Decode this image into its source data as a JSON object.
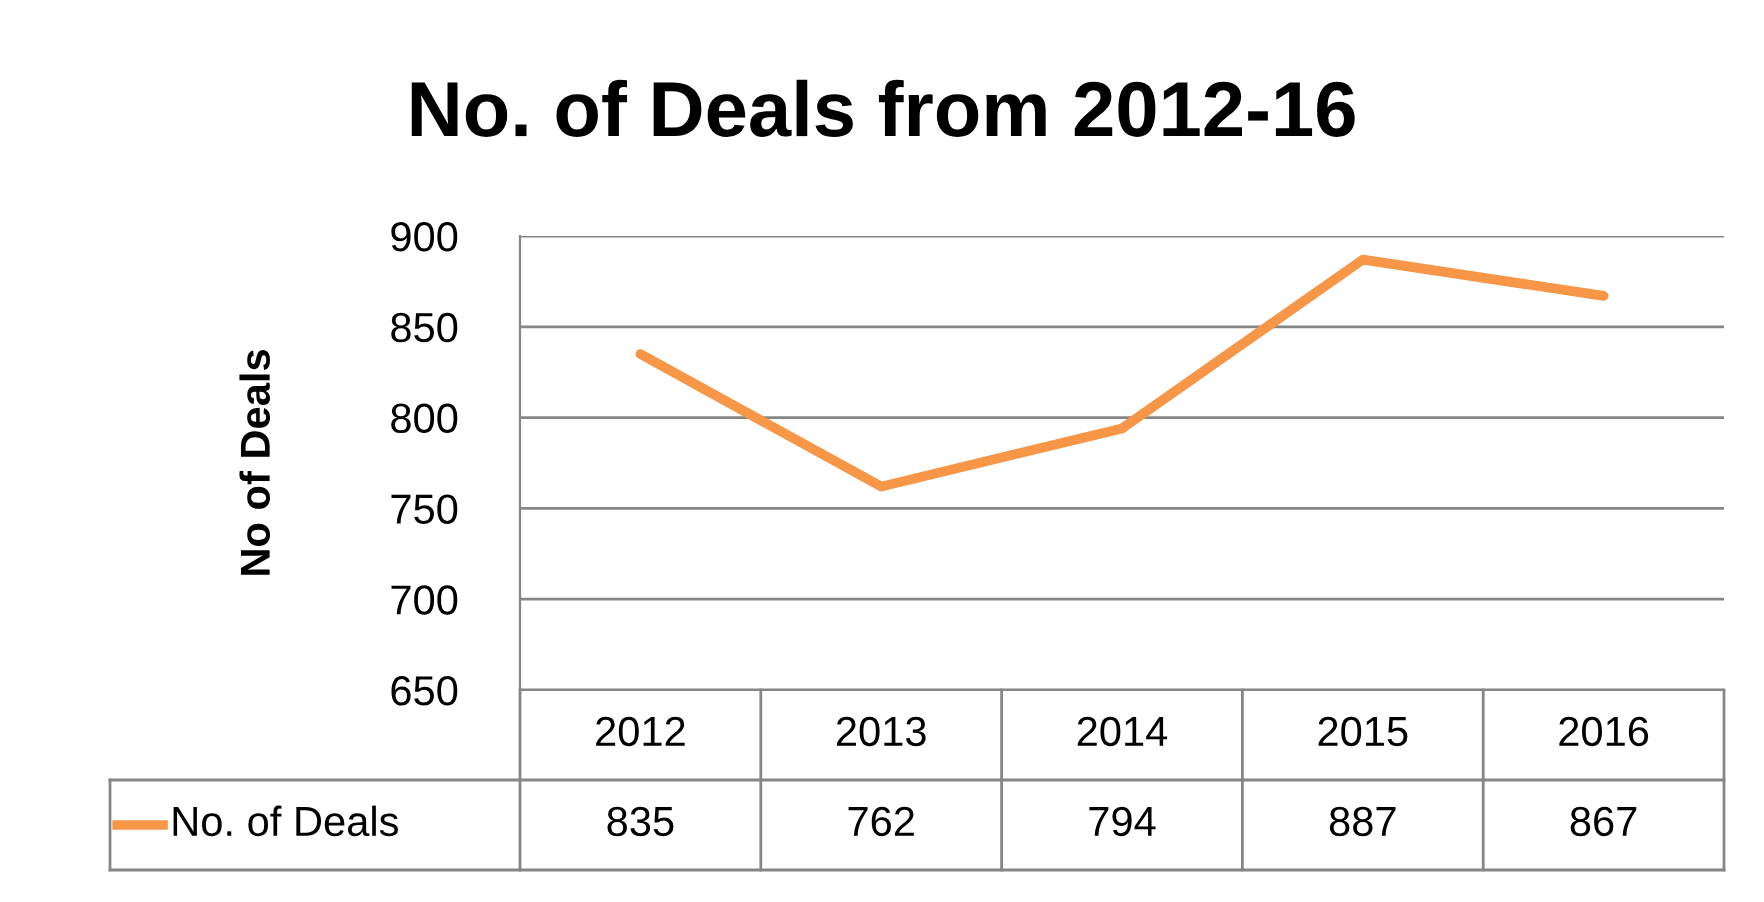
{
  "chart_data": {
    "type": "line",
    "title": "No. of Deals from 2012-16",
    "ylabel": "No of Deals",
    "categories": [
      "2012",
      "2013",
      "2014",
      "2015",
      "2016"
    ],
    "series": [
      {
        "name": "No. of Deals",
        "color": "#f79646",
        "values": [
          835,
          762,
          794,
          887,
          867
        ]
      }
    ],
    "ylim": [
      650,
      900
    ],
    "yticks": [
      650,
      700,
      750,
      800,
      850,
      900
    ],
    "grid": "y",
    "legend": "bottom",
    "data_labels": true,
    "marker": "none",
    "line_style": "solid"
  }
}
